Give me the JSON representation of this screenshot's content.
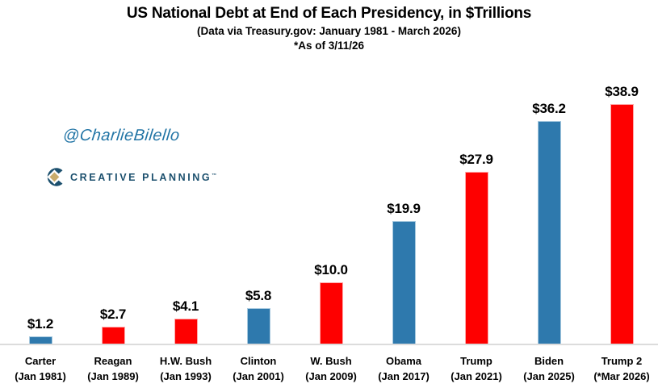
{
  "header": {
    "title": "US National Debt at End of Each Presidency, in $Trillions",
    "subtitle": "(Data via Treasury.gov: January 1981 - March 2026)",
    "asof": "*As of 3/11/26"
  },
  "watermark": "@CharlieBilello",
  "logo": {
    "text": "CREATIVE PLANNING",
    "trademark": "™"
  },
  "colors": {
    "blue": "#2E79AD",
    "red": "#FE0000",
    "blue_border": "#A7C9DF",
    "red_border": "#FFA8A8",
    "axis_line": "#DCDCDC",
    "watermark": "#2174A5",
    "logo_navy": "#1C506E",
    "logo_gold": "#C9AC6C"
  },
  "chart_data": {
    "type": "bar",
    "title": "US National Debt at End of Each Presidency, in $Trillions",
    "subtitle": "(Data via Treasury.gov: January 1981 - March 2026)",
    "annotation": "*As of 3/11/26",
    "categories": [
      "Carter",
      "Reagan",
      "H.W. Bush",
      "Clinton",
      "W. Bush",
      "Obama",
      "Trump",
      "Biden",
      "Trump 2"
    ],
    "category_sublabels": [
      "(Jan 1981)",
      "(Jan 1989)",
      "(Jan 1993)",
      "(Jan 2001)",
      "(Jan 2009)",
      "(Jan 2017)",
      "(Jan 2021)",
      "(Jan 2025)",
      "(*Mar 2026)"
    ],
    "values": [
      1.2,
      2.7,
      4.1,
      5.8,
      10.0,
      19.9,
      27.9,
      36.2,
      38.9
    ],
    "value_labels": [
      "$1.2",
      "$2.7",
      "$4.1",
      "$5.8",
      "$10.0",
      "$19.9",
      "$27.9",
      "$36.2",
      "$38.9"
    ],
    "bar_colors": [
      "blue",
      "red",
      "red",
      "blue",
      "red",
      "blue",
      "red",
      "blue",
      "red"
    ],
    "ylabel": "",
    "xlabel": "",
    "ylim": [
      0,
      38.9
    ],
    "grid": false,
    "legend": false
  }
}
